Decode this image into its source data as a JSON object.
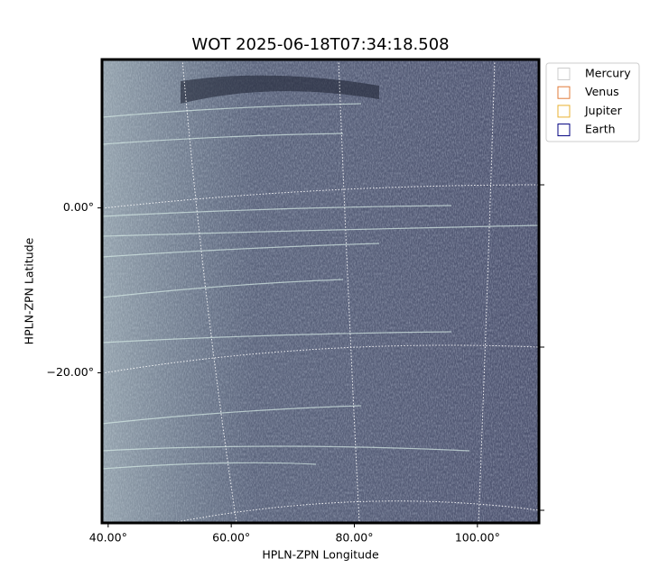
{
  "chart_data": {
    "type": "image",
    "title": "WOT 2025-06-18T07:34:18.508",
    "x_label": "HPLN-ZPN Longitude",
    "y_label": "HPLN-ZPN Latitude",
    "xlim": [
      39,
      110
    ],
    "ylim": [
      -38.2,
      18
    ],
    "xticks": [
      {
        "value": 40,
        "label": "40.00°"
      },
      {
        "value": 60,
        "label": "60.00°"
      },
      {
        "value": 80,
        "label": "80.00°"
      },
      {
        "value": 100,
        "label": "100.00°"
      }
    ],
    "yticks": [
      {
        "value": 0,
        "label": "0.00°"
      },
      {
        "value": -20,
        "label": "−20.00°"
      }
    ],
    "grid": true,
    "legend_position": "upper-right-outside",
    "legend": [
      {
        "name": "Mercury",
        "color": "#cccccc"
      },
      {
        "name": "Venus",
        "color": "#e07b39"
      },
      {
        "name": "Jupiter",
        "color": "#e8b030"
      },
      {
        "name": "Earth",
        "color": "#000080"
      }
    ]
  }
}
